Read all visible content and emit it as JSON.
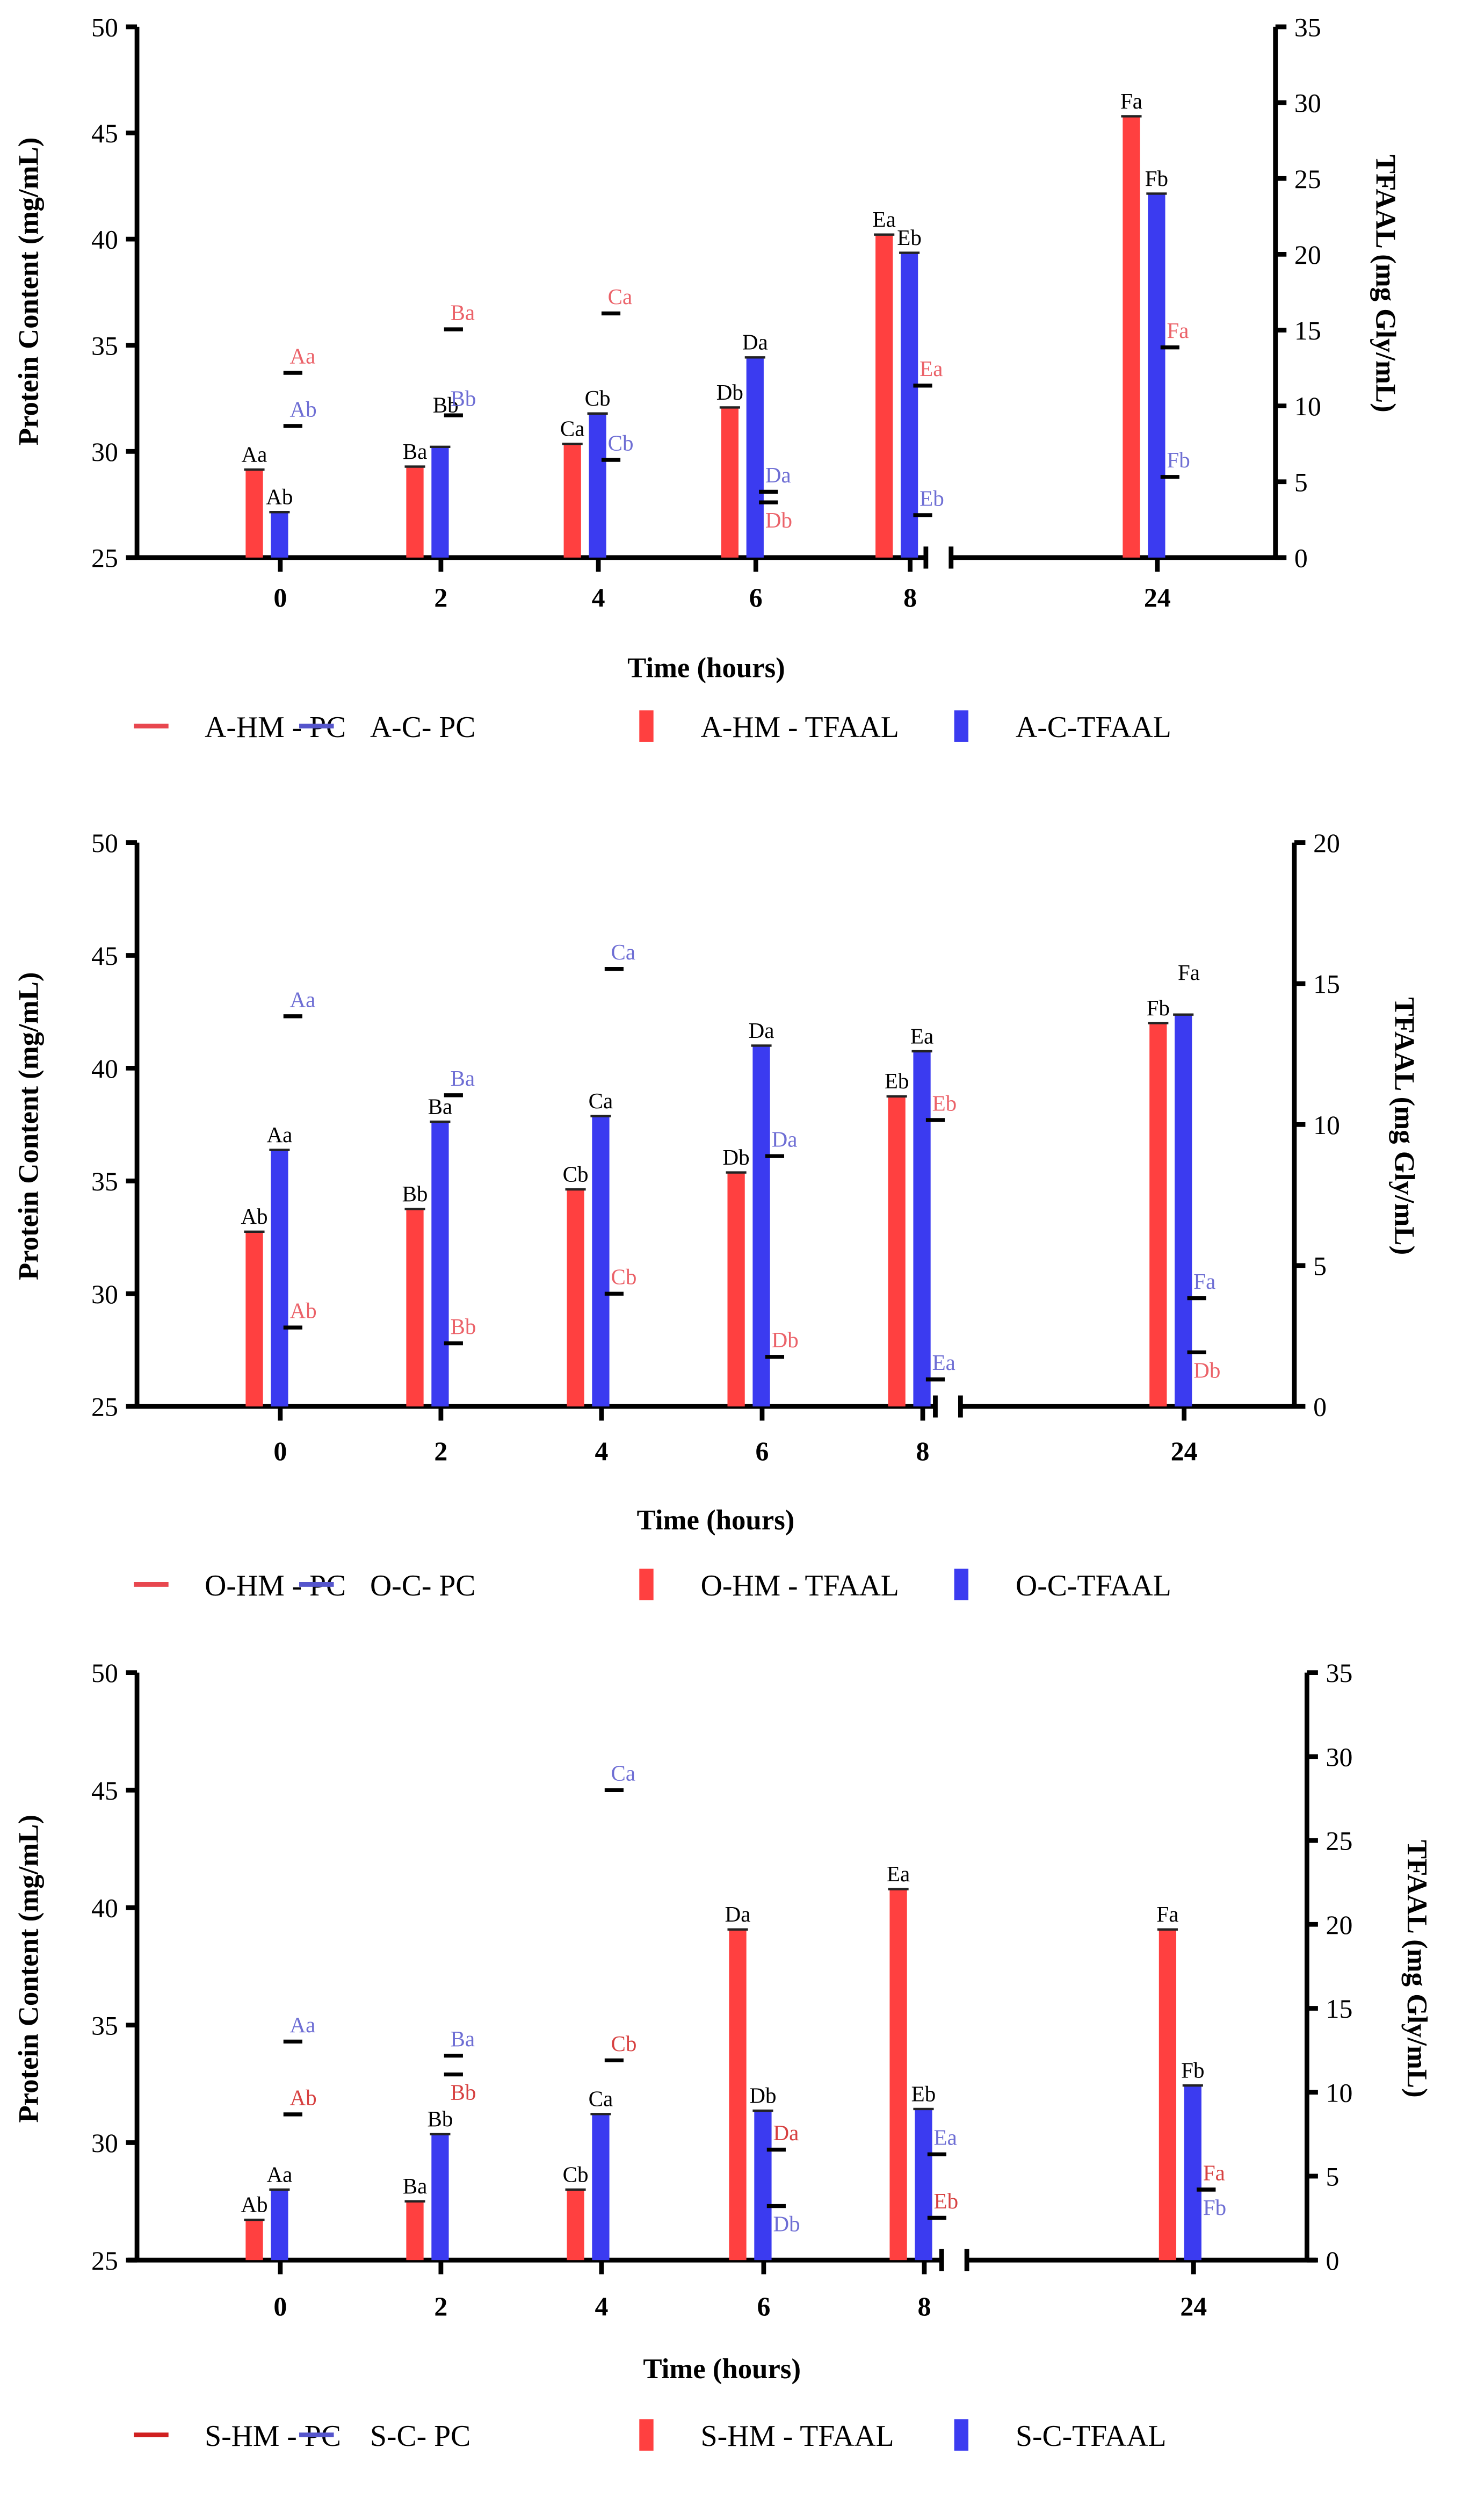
{
  "chart_data": [
    {
      "type": "bar",
      "title": "",
      "xlabel": "Time (hours)",
      "ylabel": "Protein Content (mg/mL)",
      "y2label": "TFAAL (mg Gly/mL)",
      "categories": [
        "0",
        "2",
        "4",
        "6",
        "8",
        "24"
      ],
      "ylim": [
        25,
        50
      ],
      "yticks": [
        "25",
        "30",
        "35",
        "40",
        "45",
        "50"
      ],
      "y2lim": [
        0,
        35
      ],
      "y2ticks": [
        "0",
        "5",
        "10",
        "15",
        "20",
        "25",
        "30",
        "35"
      ],
      "axis_break": "between 8 and 24",
      "legend": [
        "A-HM - PC",
        "A-C- PC",
        "A-HM - TFAAL",
        "A-C-TFAAL"
      ],
      "bars": [
        {
          "name": "A-HM - TFAAL",
          "color": "#ff4040",
          "values": [
            5.8,
            6.0,
            7.5,
            9.9,
            21.3,
            29.1
          ],
          "labels": [
            "Aa",
            "Ba",
            "Ca",
            "Db",
            "Ea",
            "Fa"
          ]
        },
        {
          "name": "A-C-TFAAL",
          "color": "#3b3bf0",
          "values": [
            3.0,
            7.3,
            9.5,
            13.2,
            20.1,
            24.0
          ],
          "labels": [
            "Ab",
            "Bb",
            "Cb",
            "Da",
            "Eb",
            "Fb"
          ]
        }
      ],
      "pc": [
        {
          "name": "A-HM - PC",
          "color": "#e8474f",
          "values": [
            33.7,
            35.75,
            36.5,
            27.6,
            33.1,
            34.9
          ],
          "labels": [
            "Aa",
            "Ba",
            "Ca",
            "Db",
            "Ea",
            "Fa"
          ]
        },
        {
          "name": "A-C- PC",
          "color": "#5555cc",
          "values": [
            31.2,
            31.7,
            29.6,
            28.1,
            27.0,
            28.8
          ],
          "labels": [
            "Ab",
            "Bb",
            "Cb",
            "Da",
            "Eb",
            "Fb"
          ]
        }
      ]
    },
    {
      "type": "bar",
      "title": "",
      "xlabel": "Time (hours)",
      "ylabel": "Protein Content (mg/mL)",
      "y2label": "TFAAL (mg Gly/mL)",
      "categories": [
        "0",
        "2",
        "4",
        "6",
        "8",
        "24"
      ],
      "ylim": [
        25,
        50
      ],
      "yticks": [
        "25",
        "30",
        "35",
        "40",
        "45",
        "50"
      ],
      "y2lim": [
        0,
        20
      ],
      "y2ticks": [
        "0",
        "5",
        "10",
        "15",
        "20"
      ],
      "axis_break": "between 8 and 24",
      "legend": [
        "O-HM - PC",
        "O-C- PC",
        "O-HM - TFAAL",
        "O-C-TFAAL"
      ],
      "bars": [
        {
          "name": "O-HM - TFAAL",
          "color": "#ff4040",
          "values": [
            6.2,
            7.0,
            7.7,
            8.3,
            11.0,
            13.6
          ],
          "labels": [
            "Ab",
            "Bb",
            "Cb",
            "Db",
            "Eb",
            "Fb"
          ]
        },
        {
          "name": "O-C-TFAAL",
          "color": "#3b3bf0",
          "values": [
            9.1,
            10.1,
            10.3,
            12.8,
            12.6,
            13.9
          ],
          "labels": [
            "Aa",
            "Ba",
            "Ca",
            "Da",
            "Ea",
            "Fa"
          ]
        }
      ],
      "pc": [
        {
          "name": "O-HM - PC",
          "color": "#e8474f",
          "values": [
            28.5,
            27.8,
            30.0,
            27.2,
            37.7,
            27.4
          ],
          "labels": [
            "Ab",
            "Bb",
            "Cb",
            "Db",
            "Eb",
            "Db"
          ]
        },
        {
          "name": "O-C- PC",
          "color": "#5555cc",
          "values": [
            42.3,
            38.8,
            44.4,
            36.1,
            26.2,
            29.8
          ],
          "labels": [
            "Aa",
            "Ba",
            "Ca",
            "Da",
            "Ea",
            "Fa"
          ]
        }
      ]
    },
    {
      "type": "bar",
      "title": "",
      "xlabel": "Time (hours)",
      "ylabel": "Protein Content (mg/mL)",
      "y2label": "TFAAL (mg Gly/mL)",
      "categories": [
        "0",
        "2",
        "4",
        "6",
        "8",
        "24"
      ],
      "ylim": [
        25,
        50
      ],
      "yticks": [
        "25",
        "30",
        "35",
        "40",
        "45",
        "50"
      ],
      "y2lim": [
        0,
        35
      ],
      "y2ticks": [
        "0",
        "5",
        "10",
        "15",
        "20",
        "25",
        "30",
        "35"
      ],
      "axis_break": "between 8 and 24",
      "legend": [
        "S-HM - PC",
        "S-C- PC",
        "S-HM - TFAAL",
        "S-C-TFAAL"
      ],
      "bars": [
        {
          "name": "S-HM - TFAAL",
          "color": "#ff4040",
          "values": [
            2.4,
            3.5,
            4.2,
            19.7,
            22.1,
            19.7
          ],
          "labels": [
            "Ab",
            "Ba",
            "Cb",
            "Da",
            "Ea",
            "Fa"
          ]
        },
        {
          "name": "S-C-TFAAL",
          "color": "#3b3bf0",
          "values": [
            4.2,
            7.5,
            8.7,
            8.9,
            9.0,
            10.4
          ],
          "labels": [
            "Aa",
            "Bb",
            "Ca",
            "Db",
            "Eb",
            "Fb"
          ]
        }
      ],
      "pc": [
        {
          "name": "S-HM - PC",
          "color": "#d02020",
          "values": [
            31.2,
            32.9,
            33.5,
            29.7,
            26.8,
            28.0
          ],
          "labels": [
            "Ab",
            "Bb",
            "Cb",
            "Da",
            "Eb",
            "Fa"
          ]
        },
        {
          "name": "S-C- PC",
          "color": "#5555cc",
          "values": [
            34.3,
            33.7,
            45.0,
            27.3,
            29.5,
            28.0
          ],
          "labels": [
            "Aa",
            "Ba",
            "Ca",
            "Db",
            "Ea",
            "Fb"
          ]
        }
      ]
    }
  ]
}
